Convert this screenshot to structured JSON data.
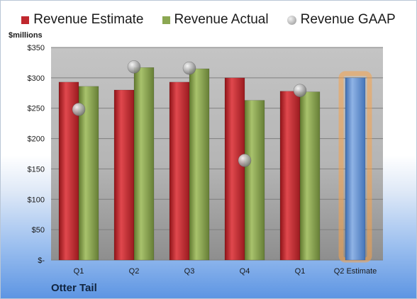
{
  "chart_data": {
    "type": "bar",
    "ylabel": "$millions",
    "ylim": [
      0,
      350
    ],
    "yticks": [
      {
        "value": 0,
        "label": "$-"
      },
      {
        "value": 50,
        "label": "$50"
      },
      {
        "value": 100,
        "label": "$100"
      },
      {
        "value": 150,
        "label": "$150"
      },
      {
        "value": 200,
        "label": "$200"
      },
      {
        "value": 250,
        "label": "$250"
      },
      {
        "value": 300,
        "label": "$300"
      },
      {
        "value": 350,
        "label": "$350"
      }
    ],
    "categories": [
      "Q1",
      "Q2",
      "Q3",
      "Q4",
      "Q1",
      "Q2 Estimate"
    ],
    "series": [
      {
        "name": "Revenue Estimate",
        "type": "bar",
        "color": "#c0282e",
        "values": [
          293,
          280,
          293,
          300,
          278,
          null
        ]
      },
      {
        "name": "Revenue Actual",
        "type": "bar",
        "color": "#8ba752",
        "values": [
          286,
          317,
          315,
          263,
          277,
          null
        ]
      },
      {
        "name": "Revenue GAAP",
        "type": "scatter",
        "color": "#b0b0b0",
        "values": [
          248,
          318,
          316,
          164,
          279,
          null
        ]
      }
    ],
    "estimate": {
      "category": "Q2 Estimate",
      "value": 300,
      "color": "#6f9ad6",
      "highlight": "#f5a24b"
    },
    "grid": true,
    "legend_position": "top"
  },
  "footer": {
    "company": "Otter Tail"
  }
}
